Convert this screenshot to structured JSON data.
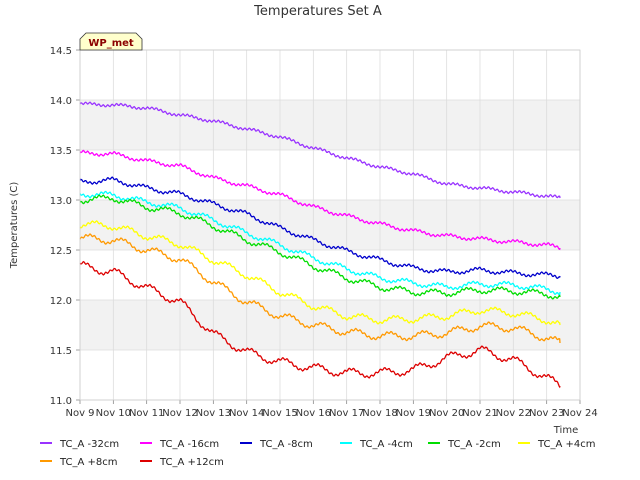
{
  "chart_data": {
    "type": "line",
    "title": "Temperatures Set A",
    "xlabel": "Time",
    "ylabel": "Temperatures (C)",
    "badge": "WP_met",
    "ylim": [
      11.0,
      14.5
    ],
    "xlim": [
      0,
      15
    ],
    "yticks": [
      "11.0",
      "11.5",
      "12.0",
      "12.5",
      "13.0",
      "13.5",
      "14.0",
      "14.5"
    ],
    "xticks": [
      "Nov 9",
      "Nov 10",
      "Nov 11",
      "Nov 12",
      "Nov 13",
      "Nov 14",
      "Nov 15",
      "Nov 16",
      "Nov 17",
      "Nov 18",
      "Nov 19",
      "Nov 20",
      "Nov 21",
      "Nov 22",
      "Nov 23",
      "Nov 24"
    ],
    "x_days": [
      "Nov 9",
      "Nov 10",
      "Nov 11",
      "Nov 12",
      "Nov 13",
      "Nov 14",
      "Nov 15",
      "Nov 16",
      "Nov 17",
      "Nov 18",
      "Nov 19",
      "Nov 20",
      "Nov 21",
      "Nov 22",
      "Nov 23",
      "Nov 23.4"
    ],
    "grid": true,
    "band_colors": [
      "#ffffff",
      "#f2f2f2"
    ],
    "series": [
      {
        "name": "TC_A -32cm",
        "color": "#9933ff",
        "values": [
          13.96,
          13.95,
          13.92,
          13.85,
          13.79,
          13.71,
          13.63,
          13.52,
          13.42,
          13.33,
          13.26,
          13.16,
          13.12,
          13.08,
          13.04,
          13.02
        ]
      },
      {
        "name": "TC_A -16cm",
        "color": "#ff00ff",
        "values": [
          13.47,
          13.46,
          13.39,
          13.34,
          13.22,
          13.14,
          13.05,
          12.93,
          12.84,
          12.76,
          12.69,
          12.64,
          12.61,
          12.58,
          12.55,
          12.52
        ]
      },
      {
        "name": "TC_A -8cm",
        "color": "#0000cc",
        "values": [
          13.18,
          13.2,
          13.12,
          13.06,
          12.96,
          12.86,
          12.72,
          12.6,
          12.49,
          12.4,
          12.32,
          12.28,
          12.3,
          12.27,
          12.25,
          12.24
        ]
      },
      {
        "name": "TC_A -4cm",
        "color": "#00ffff",
        "values": [
          13.06,
          13.05,
          12.98,
          12.92,
          12.8,
          12.67,
          12.55,
          12.42,
          12.31,
          12.22,
          12.17,
          12.13,
          12.16,
          12.15,
          12.11,
          12.08
        ]
      },
      {
        "name": "TC_A -2cm",
        "color": "#00dd00",
        "values": [
          13.0,
          13.02,
          12.93,
          12.87,
          12.74,
          12.6,
          12.48,
          12.34,
          12.22,
          12.13,
          12.08,
          12.07,
          12.1,
          12.09,
          12.06,
          12.03
        ]
      },
      {
        "name": "TC_A +4cm",
        "color": "#ffff00",
        "values": [
          12.76,
          12.74,
          12.64,
          12.56,
          12.4,
          12.25,
          12.08,
          11.94,
          11.84,
          11.8,
          11.81,
          11.84,
          11.9,
          11.87,
          11.8,
          11.75
        ]
      },
      {
        "name": "TC_A +8cm",
        "color": "#ff9900",
        "values": [
          12.62,
          12.6,
          12.5,
          12.41,
          12.18,
          11.98,
          11.84,
          11.75,
          11.68,
          11.64,
          11.64,
          11.67,
          11.74,
          11.72,
          11.62,
          11.57
        ]
      },
      {
        "name": "TC_A +12cm",
        "color": "#dd0000",
        "values": [
          12.34,
          12.28,
          12.12,
          11.98,
          11.66,
          11.48,
          11.38,
          11.32,
          11.27,
          11.27,
          11.3,
          11.42,
          11.5,
          11.4,
          11.22,
          11.14
        ]
      }
    ],
    "legend": {
      "placement": "bottom"
    }
  }
}
